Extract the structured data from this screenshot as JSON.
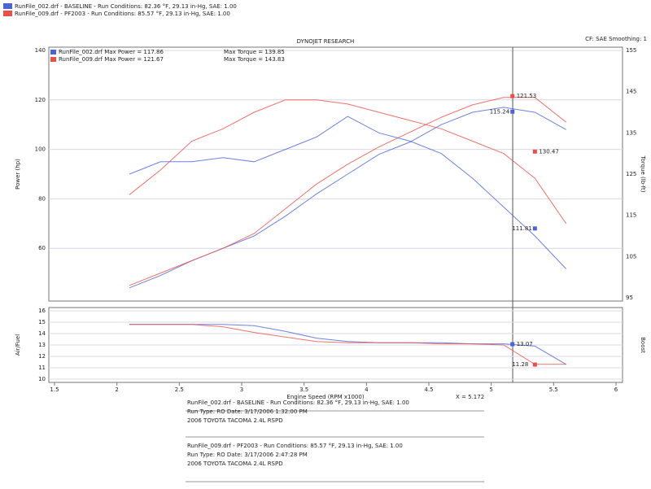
{
  "header": {
    "run1": "RunFile_002.drf - BASELINE - Run Conditions: 82.36 °F, 29.13 in-Hg, SAE: 1.00",
    "run2": "RunFile_009.drf - PF2003 - Run Conditions: 85.57 °F, 29.13 in-Hg, SAE: 1.00",
    "center": "DYNOJET RESEARCH",
    "right": "CF: SAE  Smoothing: 1"
  },
  "chart_data": [
    {
      "type": "line",
      "ylabel": "Power (hp)",
      "y2label": "Torque (lb-ft)",
      "legend": [
        {
          "text": "RunFile_002.drf Max Power = 117.86",
          "text2": "Max Torque = 139.85",
          "color": "#4a63d8"
        },
        {
          "text": "RunFile_009.drf Max Power = 121.67",
          "text2": "Max Torque = 143.83",
          "color": "#e8504a"
        }
      ],
      "x": [
        2.1,
        2.35,
        2.6,
        2.85,
        3.1,
        3.35,
        3.6,
        3.85,
        4.1,
        4.35,
        4.6,
        4.85,
        5.1,
        5.35,
        5.6
      ],
      "xlim": [
        1.5,
        6.0
      ],
      "ylim": [
        40,
        140
      ],
      "yticks": [
        60,
        80,
        100,
        120,
        140
      ],
      "y2lim": [
        95,
        155
      ],
      "y2ticks": [
        95,
        105,
        115,
        125,
        135,
        145,
        155
      ],
      "series": [
        {
          "name": "RunFile_002 Power",
          "color": "#4a63d8",
          "values": [
            44,
            49,
            55,
            60,
            65,
            73,
            82,
            90,
            98,
            103,
            110,
            115,
            117,
            115,
            108
          ]
        },
        {
          "name": "RunFile_009 Power",
          "color": "#e8504a",
          "values": [
            45,
            50,
            55,
            60,
            66,
            76,
            86,
            94,
            101,
            107,
            113,
            118,
            121,
            121,
            111
          ]
        },
        {
          "name": "RunFile_002 Torque",
          "color": "#4a63d8",
          "axis": "y2",
          "values": [
            125,
            128,
            128,
            129,
            128,
            131,
            134,
            139,
            135,
            133,
            130,
            124,
            117,
            110,
            102
          ]
        },
        {
          "name": "RunFile_009 Torque",
          "color": "#e8504a",
          "axis": "y2",
          "values": [
            120,
            126,
            133,
            136,
            140,
            143,
            143,
            142,
            140,
            138,
            136,
            133,
            130,
            124,
            113
          ]
        }
      ],
      "annotations": [
        {
          "text": "121.53",
          "x": 5.17,
          "value": 121.53,
          "color": "#e8504a"
        },
        {
          "text": "115.24",
          "x": 5.17,
          "value": 115.24,
          "color": "#4a63d8"
        },
        {
          "text": "130.47",
          "x": 5.35,
          "value": 130.47,
          "axis": "y2",
          "color": "#e8504a"
        },
        {
          "text": "111.81",
          "x": 5.35,
          "value": 111.81,
          "axis": "y2",
          "color": "#4a63d8"
        }
      ],
      "cursor": 5.172
    },
    {
      "type": "line",
      "ylabel": "Air/Fuel",
      "y2label": "Boost",
      "x": [
        2.1,
        2.35,
        2.6,
        2.85,
        3.1,
        3.35,
        3.6,
        3.85,
        4.1,
        4.35,
        4.6,
        4.85,
        5.1,
        5.35,
        5.6
      ],
      "xlim": [
        1.5,
        6.0
      ],
      "xticks": [
        1.5,
        2.0,
        2.5,
        3.0,
        3.5,
        4.0,
        4.5,
        5.0,
        5.5,
        6.0
      ],
      "xlabel": "Engine Speed (RPM x1000)",
      "cursor_label": "X = 5.172",
      "ylim": [
        10,
        16
      ],
      "yticks": [
        10,
        11,
        12,
        13,
        14,
        15,
        16
      ],
      "series": [
        {
          "name": "RunFile_002 AFR",
          "color": "#4a63d8",
          "values": [
            14.8,
            14.8,
            14.8,
            14.8,
            14.7,
            14.2,
            13.6,
            13.3,
            13.2,
            13.2,
            13.2,
            13.1,
            13.1,
            12.9,
            11.3
          ]
        },
        {
          "name": "RunFile_009 AFR",
          "color": "#e8504a",
          "values": [
            14.8,
            14.8,
            14.8,
            14.6,
            14.1,
            13.7,
            13.3,
            13.2,
            13.2,
            13.2,
            13.1,
            13.1,
            13.0,
            11.3,
            11.3
          ]
        }
      ],
      "annotations": [
        {
          "text": "13.07",
          "x": 5.17,
          "value": 13.07,
          "color": "#4a63d8"
        },
        {
          "text": "11.28",
          "x": 5.35,
          "value": 11.28,
          "color": "#e8504a"
        }
      ]
    }
  ],
  "notes": {
    "run1": [
      "RunFile_002.drf - BASELINE - Run Conditions: 82.36 °F, 29.13 in-Hg, SAE: 1.00",
      "Run Type: RO  Date: 3/17/2006 1:32:00 PM",
      "2006 TOYOTA TACOMA 2.4L RSPD"
    ],
    "run2": [
      "RunFile_009.drf - PF2003 - Run Conditions: 85.57 °F, 29.13 in-Hg, SAE: 1.00",
      "Run Type: RO  Date: 3/17/2006 2:47:28 PM",
      "2006 TOYOTA TACOMA 2.4L RSPD"
    ]
  }
}
